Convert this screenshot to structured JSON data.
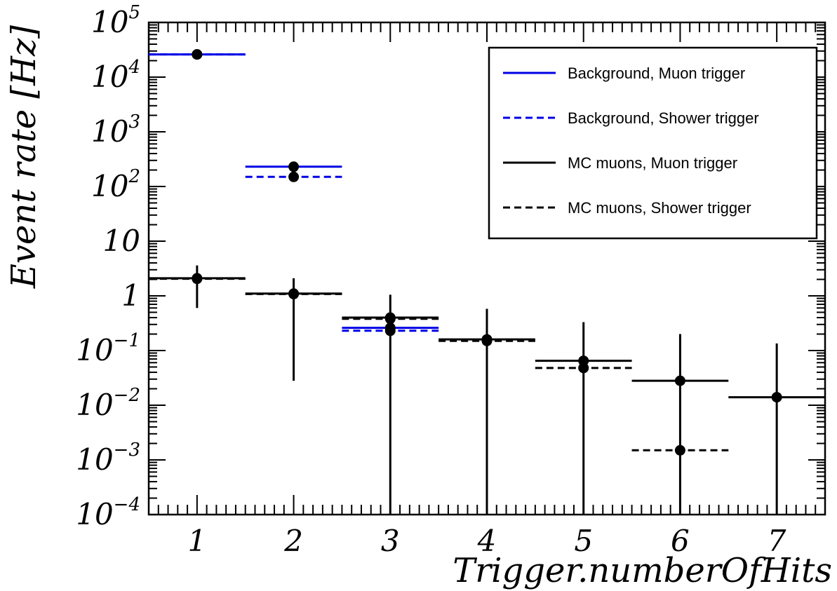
{
  "chart_data": {
    "type": "scatter",
    "xlabel": "Trigger.numberOfHits",
    "ylabel": "Event rate [Hz]",
    "x_range": [
      0.5,
      7.5
    ],
    "ylim": [
      0.0001,
      100000
    ],
    "y_scale": "log",
    "grid": false,
    "legend_position": "top-right",
    "x_ticks": [
      "1",
      "2",
      "3",
      "4",
      "5",
      "6",
      "7"
    ],
    "y_ticks": [
      {
        "base": "10",
        "exp": "−4"
      },
      {
        "base": "10",
        "exp": "−3"
      },
      {
        "base": "10",
        "exp": "−2"
      },
      {
        "base": "10",
        "exp": "−1"
      },
      {
        "base": "1",
        "exp": ""
      },
      {
        "base": "10",
        "exp": ""
      },
      {
        "base": "10",
        "exp": "2"
      },
      {
        "base": "10",
        "exp": "3"
      },
      {
        "base": "10",
        "exp": "4"
      },
      {
        "base": "10",
        "exp": "5"
      }
    ],
    "series": [
      {
        "name": "Background, Muon trigger",
        "color": "#0000e6",
        "line_style": "solid",
        "x": [
          1,
          2,
          3
        ],
        "y": [
          26000,
          230,
          0.26
        ]
      },
      {
        "name": "Background, Shower trigger",
        "color": "#0000e6",
        "line_style": "dashed",
        "x": [
          1,
          2,
          3
        ],
        "y": [
          26000,
          150,
          0.23
        ]
      },
      {
        "name": "MC muons, Muon trigger",
        "color": "#000000",
        "line_style": "solid",
        "x": [
          1,
          2,
          3,
          4,
          5,
          6,
          7
        ],
        "y": [
          2.1,
          1.1,
          0.4,
          0.16,
          0.065,
          0.028,
          0.014
        ],
        "y_err_low": [
          0.6,
          0.028,
          0.0001,
          0.0001,
          0.0001,
          0.0001,
          0.0001
        ],
        "y_err_high": [
          3.6,
          2.1,
          1.05,
          0.58,
          0.33,
          0.2,
          0.135
        ]
      },
      {
        "name": "MC muons, Shower trigger",
        "color": "#000000",
        "line_style": "dashed",
        "x": [
          1,
          2,
          3,
          4,
          5,
          6
        ],
        "y": [
          2.05,
          1.08,
          0.38,
          0.15,
          0.048,
          0.0015
        ]
      }
    ]
  }
}
